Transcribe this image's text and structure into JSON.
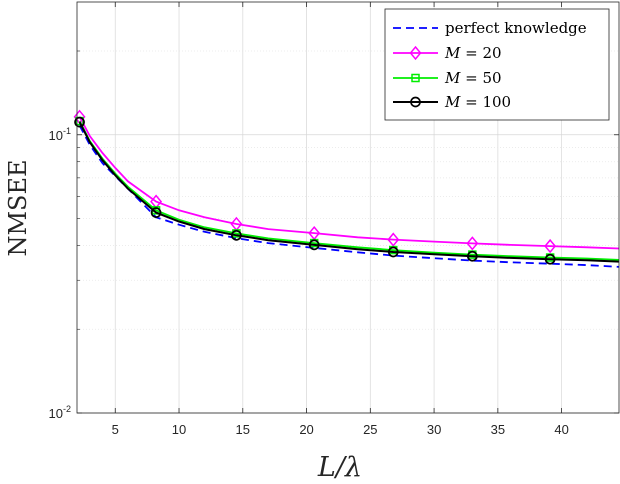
{
  "chart_data": {
    "type": "line",
    "xlabel": "L/λ",
    "ylabel": "NMSEE",
    "xlim": [
      2,
      44.5
    ],
    "ylim": [
      0.01,
      0.3
    ],
    "yscale": "log",
    "grid": true,
    "legend_position": "top-right",
    "xticks": [
      5,
      10,
      15,
      20,
      25,
      30,
      35,
      40
    ],
    "xtick_labels": [
      "5",
      "10",
      "15",
      "20",
      "25",
      "30",
      "35",
      "40"
    ],
    "yticks": [
      0.01,
      0.1
    ],
    "ytick_labels": [
      {
        "base": "10",
        "exp": "-2"
      },
      {
        "base": "10",
        "exp": "-1"
      }
    ],
    "series": [
      {
        "name": "perfect knowledge",
        "color": "#0000ff",
        "dash": "8,5",
        "marker": "none",
        "x": [
          2.2,
          3,
          4,
          5,
          6,
          8.2,
          10,
          12,
          14.5,
          17,
          20.6,
          24,
          26.8,
          30,
          33,
          36,
          39.1,
          42,
          44.5
        ],
        "y": [
          0.108,
          0.092,
          0.079,
          0.071,
          0.064,
          0.0505,
          0.0475,
          0.0448,
          0.0425,
          0.0408,
          0.0392,
          0.0378,
          0.0368,
          0.036,
          0.0353,
          0.0348,
          0.0344,
          0.034,
          0.0335
        ]
      },
      {
        "name": "M = 20",
        "label_symbol": "M",
        "label_value": "20",
        "color": "#ff00ff",
        "marker": "diamond",
        "x": [
          2.2,
          3,
          4,
          5,
          6,
          8.2,
          10,
          12,
          14.5,
          17,
          20.6,
          24,
          26.8,
          30,
          33,
          36,
          39.1,
          42,
          44.5
        ],
        "y": [
          0.116,
          0.099,
          0.086,
          0.076,
          0.068,
          0.0575,
          0.0535,
          0.0505,
          0.0478,
          0.0458,
          0.0443,
          0.0428,
          0.042,
          0.0413,
          0.0407,
          0.0402,
          0.0398,
          0.0394,
          0.039
        ]
      },
      {
        "name": "M = 50",
        "label_symbol": "M",
        "label_value": "50",
        "color": "#00ee00",
        "marker": "square",
        "x": [
          2.2,
          3,
          4,
          5,
          6,
          8.2,
          10,
          12,
          14.5,
          17,
          20.6,
          24,
          26.8,
          30,
          33,
          36,
          39.1,
          42,
          44.5
        ],
        "y": [
          0.112,
          0.095,
          0.082,
          0.0725,
          0.065,
          0.0535,
          0.0495,
          0.0465,
          0.0442,
          0.0424,
          0.0408,
          0.0394,
          0.0385,
          0.0377,
          0.0371,
          0.0366,
          0.0362,
          0.0359,
          0.0355
        ]
      },
      {
        "name": "M = 100",
        "label_symbol": "M",
        "label_value": "100",
        "color": "#000000",
        "marker": "circle",
        "x": [
          2.2,
          3,
          4,
          5,
          6,
          8.2,
          10,
          12,
          14.5,
          17,
          20.6,
          24,
          26.8,
          30,
          33,
          36,
          39.1,
          42,
          44.5
        ],
        "y": [
          0.111,
          0.094,
          0.081,
          0.0715,
          0.064,
          0.0525,
          0.0488,
          0.0458,
          0.0435,
          0.0418,
          0.0402,
          0.0388,
          0.0379,
          0.0372,
          0.0366,
          0.0361,
          0.0357,
          0.0354,
          0.035
        ]
      }
    ],
    "marker_x": [
      2.2,
      8.2,
      14.5,
      20.6,
      26.8,
      33,
      39.1
    ]
  }
}
